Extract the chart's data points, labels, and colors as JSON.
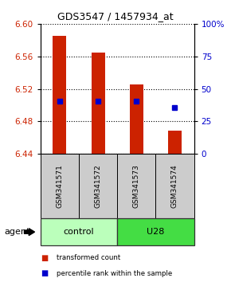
{
  "title": "GDS3547 / 1457934_at",
  "samples": [
    "GSM341571",
    "GSM341572",
    "GSM341573",
    "GSM341574"
  ],
  "bar_bottoms": [
    6.44,
    6.44,
    6.44,
    6.44
  ],
  "bar_tops": [
    6.585,
    6.565,
    6.525,
    6.468
  ],
  "bar_color": "#cc2200",
  "percentile_values": [
    6.505,
    6.505,
    6.505,
    6.497
  ],
  "percentile_color": "#0000cc",
  "ylim_left": [
    6.44,
    6.6
  ],
  "ylim_right": [
    0,
    100
  ],
  "yticks_left": [
    6.44,
    6.48,
    6.52,
    6.56,
    6.6
  ],
  "yticks_right": [
    0,
    25,
    50,
    75,
    100
  ],
  "ytick_labels_right": [
    "0",
    "25",
    "50",
    "75",
    "100%"
  ],
  "groups": [
    {
      "label": "control",
      "samples": [
        0,
        1
      ],
      "color": "#bbffbb"
    },
    {
      "label": "U28",
      "samples": [
        2,
        3
      ],
      "color": "#44dd44"
    }
  ],
  "group_row_label": "agent",
  "sample_row_color": "#cccccc",
  "legend_items": [
    {
      "color": "#cc2200",
      "label": "transformed count"
    },
    {
      "color": "#0000cc",
      "label": "percentile rank within the sample"
    }
  ],
  "bar_width": 0.35,
  "figwidth": 2.9,
  "figheight": 3.54,
  "dpi": 100
}
